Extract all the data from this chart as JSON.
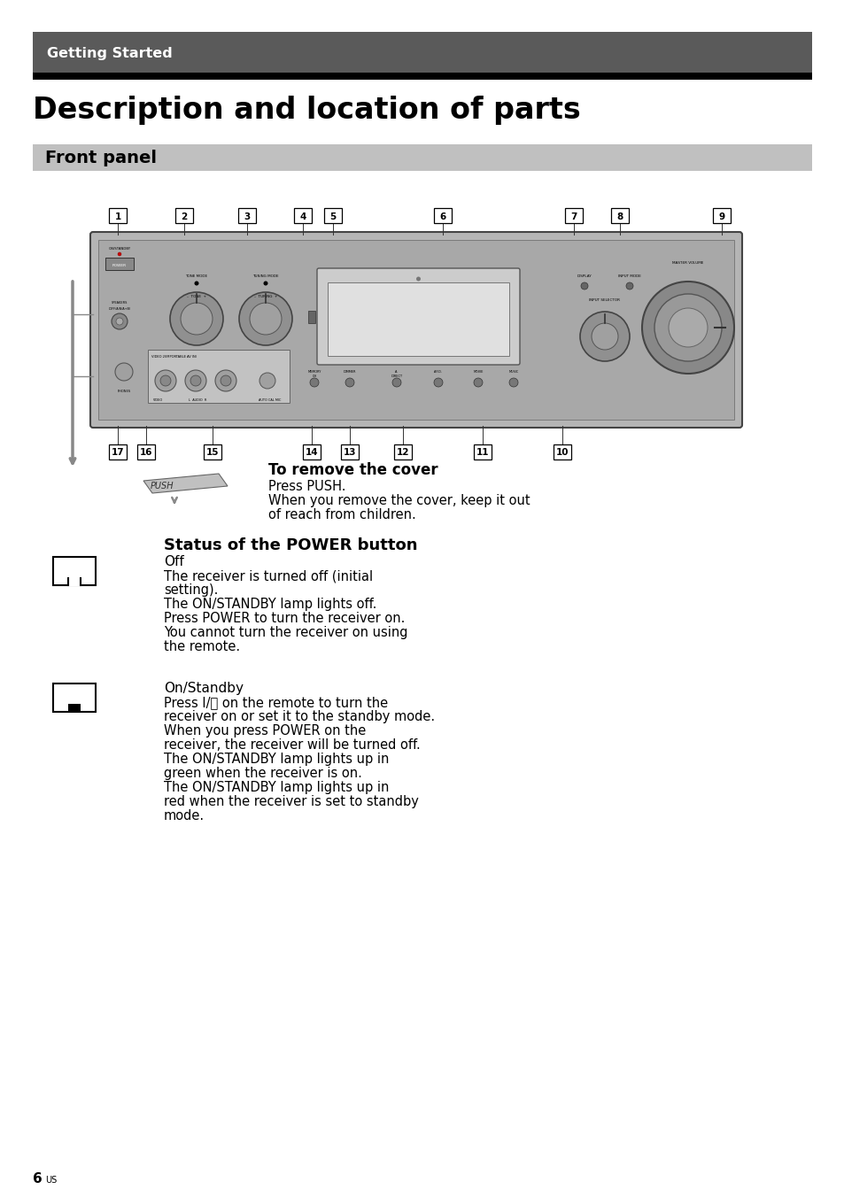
{
  "page_bg": "#ffffff",
  "header_bg": "#5a5a5a",
  "header_text": "Getting Started",
  "header_text_color": "#ffffff",
  "header_black_bar_color": "#000000",
  "title": "Description and location of parts",
  "section_header": "Front panel",
  "section_header_bg": "#c0c0c0",
  "section_header_text_color": "#000000",
  "numbered_labels_top": [
    "1",
    "2",
    "3",
    "4",
    "5",
    "6",
    "7",
    "8",
    "9"
  ],
  "numbered_labels_bottom": [
    "17",
    "16",
    "15",
    "14",
    "13",
    "12",
    "11",
    "10"
  ],
  "cover_title": "To remove the cover",
  "cover_line1": "Press PUSH.",
  "cover_line2": "When you remove the cover, keep it out",
  "cover_line3": "of reach from children.",
  "power_title": "Status of the POWER button",
  "power_off_label": "Off",
  "power_off_lines": [
    "The receiver is turned off (initial",
    "setting).",
    "The ON/STANDBY lamp lights off.",
    "Press POWER to turn the receiver on.",
    "You cannot turn the receiver on using",
    "the remote."
  ],
  "power_on_label": "On/Standby",
  "power_on_lines": [
    "Press I/⏻ on the remote to turn the",
    "receiver on or set it to the standby mode.",
    "When you press POWER on the",
    "receiver, the receiver will be turned off.",
    "The ON/STANDBY lamp lights up in",
    "green when the receiver is on.",
    "The ON/STANDBY lamp lights up in",
    "red when the receiver is set to standby",
    "mode."
  ],
  "page_number": "6",
  "page_superscript": "US",
  "receiver_color": "#b0b0b0",
  "receiver_dark": "#888888",
  "receiver_edge": "#444444"
}
